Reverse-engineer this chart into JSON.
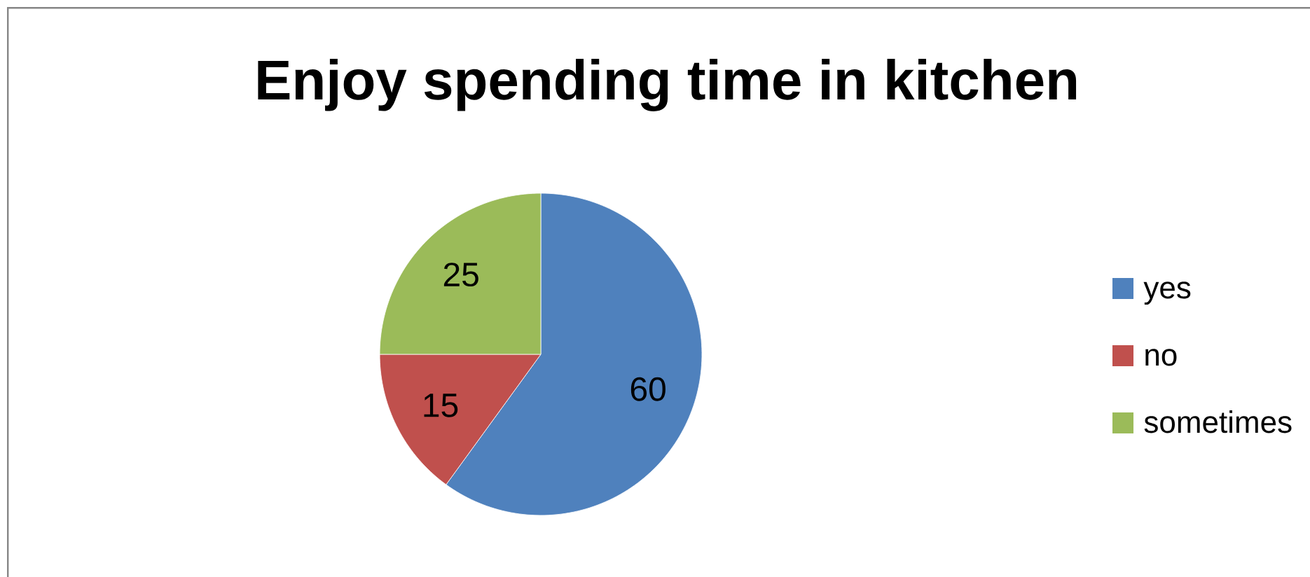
{
  "chart_data": {
    "type": "pie",
    "title": "Enjoy spending time in kitchen",
    "categories": [
      "yes",
      "no",
      "sometimes"
    ],
    "values": [
      60,
      15,
      25
    ],
    "colors": [
      "#4f81bd",
      "#c0504d",
      "#9bbb59"
    ],
    "data_labels": true,
    "legend": "right"
  }
}
